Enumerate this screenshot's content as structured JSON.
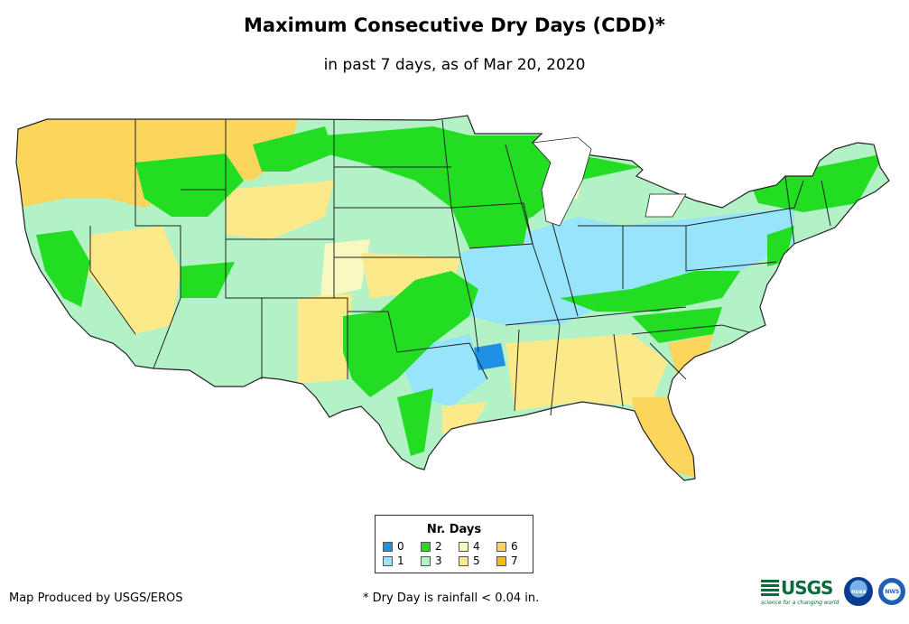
{
  "title": "Maximum Consecutive Dry Days (CDD)*",
  "subtitle": "in past 7 days, as of Mar 20, 2020",
  "legend": {
    "title": "Nr. Days",
    "items": [
      {
        "label": "0",
        "color": "#1e90e6"
      },
      {
        "label": "1",
        "color": "#97e5fb"
      },
      {
        "label": "2",
        "color": "#22dd22"
      },
      {
        "label": "3",
        "color": "#b3f2c7"
      },
      {
        "label": "4",
        "color": "#f8f8c0"
      },
      {
        "label": "5",
        "color": "#fce98a"
      },
      {
        "label": "6",
        "color": "#fbd55c"
      },
      {
        "label": "7",
        "color": "#fbbd00"
      }
    ]
  },
  "credit": "Map Produced by USGS/EROS",
  "footnote": "* Dry Day is rainfall < 0.04 in.",
  "logos": {
    "usgs": "USGS",
    "usgs_tagline": "science for a changing world",
    "noaa": "noaa",
    "nws": "NWS"
  },
  "colors": {
    "border": "#222222",
    "background": "#ffffff"
  }
}
